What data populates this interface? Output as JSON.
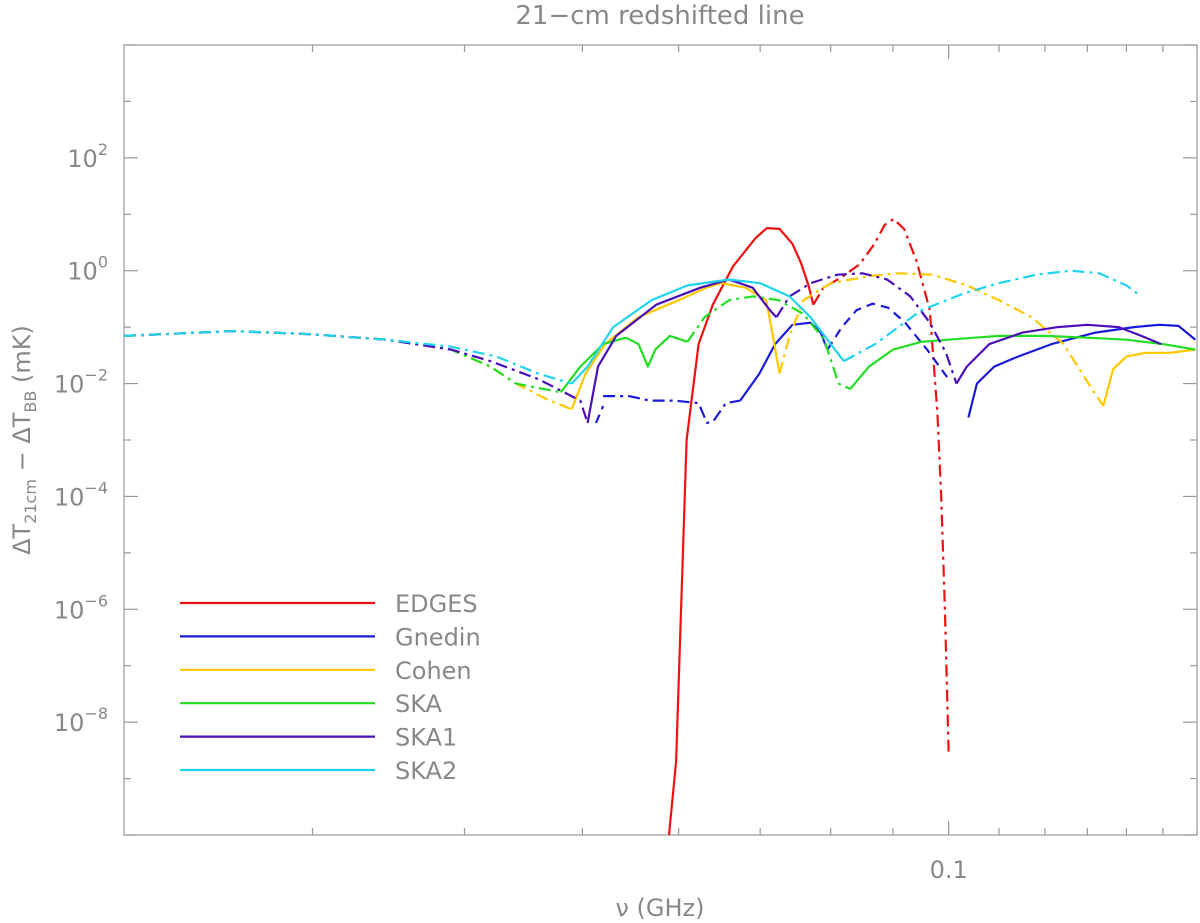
{
  "chart_data": {
    "type": "line",
    "title": "21−cm redshifted line",
    "xlabel": "ν (GHz)",
    "ylabel": "ΔT21cm − ΔTBB (mK)",
    "x_scale": "log",
    "y_scale": "log",
    "xlim": [
      0.021,
      0.16
    ],
    "ylim": [
      1e-10,
      10000.0
    ],
    "grid": false,
    "legend_position": "bottom-left",
    "x_tick_labels": [
      {
        "value": 0.1,
        "label": "0.1"
      }
    ],
    "y_tick_labels": [
      {
        "value": 100,
        "base": "10",
        "exp": "2"
      },
      {
        "value": 1,
        "base": "10",
        "exp": "0"
      },
      {
        "value": 0.01,
        "base": "10",
        "exp": "−2"
      },
      {
        "value": 0.0001,
        "base": "10",
        "exp": "−4"
      },
      {
        "value": 1e-06,
        "base": "10",
        "exp": "−6"
      },
      {
        "value": 1e-08,
        "base": "10",
        "exp": "−8"
      }
    ],
    "series": [
      {
        "name": "EDGES",
        "color": "#ee1111",
        "segments": [
          {
            "style": "solid",
            "points": [
              [
                0.0589,
                1e-10
              ],
              [
                0.0597,
                2e-09
              ],
              [
                0.0609,
                0.001
              ],
              [
                0.0623,
                0.05
              ],
              [
                0.064,
                0.25
              ],
              [
                0.0665,
                1.2
              ],
              [
                0.0694,
                3.8
              ],
              [
                0.0709,
                5.7
              ],
              [
                0.0726,
                5.5
              ],
              [
                0.0744,
                3.0
              ],
              [
                0.0756,
                1.4
              ],
              [
                0.0767,
                0.55
              ],
              [
                0.0774,
                0.25
              ]
            ]
          },
          {
            "style": "dashdot",
            "points": [
              [
                0.0774,
                0.25
              ],
              [
                0.0789,
                0.5
              ],
              [
                0.0815,
                0.75
              ],
              [
                0.0845,
                1.3
              ],
              [
                0.0869,
                3.0
              ],
              [
                0.0886,
                6.5
              ],
              [
                0.0901,
                8.2
              ],
              [
                0.0919,
                5.5
              ],
              [
                0.0941,
                1.5
              ],
              [
                0.0965,
                0.2
              ],
              [
                0.0979,
                0.003
              ],
              [
                0.0986,
                0.0001
              ],
              [
                0.0993,
                1e-06
              ],
              [
                0.1,
                3e-09
              ]
            ]
          }
        ]
      },
      {
        "name": "Gnedin",
        "color": "#1a1adb",
        "segments": [
          {
            "style": "dashed",
            "points": [
              [
                0.0513,
                0.002
              ],
              [
                0.052,
                0.004
              ]
            ]
          },
          {
            "style": "dashdot",
            "points": [
              [
                0.052,
                0.006
              ],
              [
                0.0546,
                0.006
              ],
              [
                0.0568,
                0.005
              ],
              [
                0.0595,
                0.005
              ],
              [
                0.0623,
                0.0045
              ],
              [
                0.0633,
                0.002
              ],
              [
                0.0641,
                0.0022
              ],
              [
                0.0656,
                0.0045
              ],
              [
                0.0674,
                0.005
              ]
            ]
          },
          {
            "style": "solid",
            "points": [
              [
                0.0674,
                0.005
              ],
              [
                0.0699,
                0.015
              ],
              [
                0.072,
                0.05
              ],
              [
                0.0744,
                0.11
              ],
              [
                0.077,
                0.12
              ],
              [
                0.0785,
                0.08
              ],
              [
                0.0795,
                0.04
              ]
            ]
          },
          {
            "style": "dashed",
            "points": [
              [
                0.0795,
                0.04
              ],
              [
                0.0817,
                0.1
              ],
              [
                0.084,
                0.2
              ],
              [
                0.0866,
                0.26
              ],
              [
                0.0892,
                0.22
              ],
              [
                0.0921,
                0.12
              ],
              [
                0.096,
                0.04
              ],
              [
                0.0997,
                0.013
              ]
            ]
          },
          {
            "style": "solid",
            "points": [
              [
                0.1038,
                0.0025
              ],
              [
                0.1055,
                0.01
              ],
              [
                0.109,
                0.02
              ],
              [
                0.114,
                0.03
              ],
              [
                0.1215,
                0.05
              ],
              [
                0.132,
                0.08
              ],
              [
                0.142,
                0.1
              ],
              [
                0.149,
                0.11
              ],
              [
                0.1545,
                0.105
              ],
              [
                0.1595,
                0.06
              ]
            ]
          }
        ]
      },
      {
        "name": "Cohen",
        "color": "#ffc800",
        "segments": [
          {
            "style": "dashdot",
            "points": [
              [
                0.021,
                0.07
              ],
              [
                0.0258,
                0.085
              ],
              [
                0.0299,
                0.075
              ],
              [
                0.0345,
                0.06
              ],
              [
                0.039,
                0.04
              ],
              [
                0.042,
                0.02
              ],
              [
                0.0441,
                0.01
              ],
              [
                0.047,
                0.005
              ],
              [
                0.049,
                0.0035
              ]
            ]
          },
          {
            "style": "solid",
            "points": [
              [
                0.049,
                0.0035
              ],
              [
                0.0503,
                0.015
              ],
              [
                0.0522,
                0.05
              ],
              [
                0.0556,
                0.15
              ],
              [
                0.06,
                0.3
              ],
              [
                0.0632,
                0.5
              ],
              [
                0.065,
                0.6
              ],
              [
                0.0681,
                0.5
              ],
              [
                0.0708,
                0.3
              ],
              [
                0.0718,
                0.06
              ],
              [
                0.0726,
                0.015
              ]
            ]
          },
          {
            "style": "dashdot",
            "points": [
              [
                0.0726,
                0.015
              ],
              [
                0.074,
                0.07
              ],
              [
                0.076,
                0.3
              ],
              [
                0.08,
                0.6
              ],
              [
                0.086,
                0.8
              ],
              [
                0.091,
                0.9
              ],
              [
                0.097,
                0.85
              ],
              [
                0.1035,
                0.55
              ],
              [
                0.11,
                0.3
              ],
              [
                0.117,
                0.15
              ],
              [
                0.1243,
                0.05
              ],
              [
                0.1303,
                0.01
              ],
              [
                0.134,
                0.004
              ]
            ]
          },
          {
            "style": "solid",
            "points": [
              [
                0.134,
                0.004
              ],
              [
                0.1365,
                0.018
              ],
              [
                0.14,
                0.03
              ],
              [
                0.145,
                0.035
              ],
              [
                0.152,
                0.035
              ],
              [
                0.1595,
                0.04
              ]
            ]
          }
        ]
      },
      {
        "name": "SKA",
        "color": "#22dd22",
        "segments": [
          {
            "style": "dashdot",
            "points": [
              [
                0.021,
                0.07
              ],
              [
                0.0258,
                0.085
              ],
              [
                0.0299,
                0.075
              ],
              [
                0.0345,
                0.06
              ],
              [
                0.039,
                0.04
              ],
              [
                0.042,
                0.02
              ],
              [
                0.0441,
                0.01
              ],
              [
                0.048,
                0.007
              ]
            ]
          },
          {
            "style": "solid",
            "points": [
              [
                0.048,
                0.007
              ],
              [
                0.0498,
                0.02
              ],
              [
                0.052,
                0.05
              ],
              [
                0.0543,
                0.065
              ],
              [
                0.0556,
                0.05
              ],
              [
                0.0566,
                0.02
              ],
              [
                0.0574,
                0.04
              ],
              [
                0.059,
                0.07
              ],
              [
                0.061,
                0.055
              ]
            ]
          },
          {
            "style": "dashdot",
            "points": [
              [
                0.061,
                0.055
              ],
              [
                0.063,
                0.15
              ],
              [
                0.066,
                0.3
              ],
              [
                0.069,
                0.35
              ],
              [
                0.0725,
                0.3
              ],
              [
                0.076,
                0.17
              ],
              [
                0.079,
                0.06
              ],
              [
                0.0812,
                0.01
              ],
              [
                0.083,
                0.008
              ]
            ]
          },
          {
            "style": "solid",
            "points": [
              [
                0.083,
                0.008
              ],
              [
                0.086,
                0.02
              ],
              [
                0.09,
                0.04
              ],
              [
                0.095,
                0.055
              ],
              [
                0.1,
                0.06
              ],
              [
                0.105,
                0.065
              ],
              [
                0.11,
                0.07
              ],
              [
                0.12,
                0.07
              ],
              [
                0.13,
                0.065
              ],
              [
                0.14,
                0.06
              ],
              [
                0.15,
                0.05
              ],
              [
                0.1595,
                0.04
              ]
            ]
          }
        ]
      },
      {
        "name": "SKA1",
        "color": "#4a0fb8",
        "segments": [
          {
            "style": "dashdot",
            "points": [
              [
                0.021,
                0.07
              ],
              [
                0.0258,
                0.085
              ],
              [
                0.0299,
                0.075
              ],
              [
                0.0345,
                0.06
              ],
              [
                0.039,
                0.04
              ],
              [
                0.042,
                0.025
              ],
              [
                0.046,
                0.012
              ],
              [
                0.0498,
                0.005
              ],
              [
                0.0505,
                0.002
              ]
            ]
          },
          {
            "style": "solid",
            "points": [
              [
                0.0505,
                0.002
              ],
              [
                0.0515,
                0.02
              ],
              [
                0.0533,
                0.07
              ],
              [
                0.0575,
                0.25
              ],
              [
                0.0625,
                0.5
              ],
              [
                0.066,
                0.7
              ],
              [
                0.069,
                0.5
              ],
              [
                0.0713,
                0.2
              ],
              [
                0.0722,
                0.15
              ]
            ]
          },
          {
            "style": "dashdot",
            "points": [
              [
                0.0722,
                0.15
              ],
              [
                0.074,
                0.35
              ],
              [
                0.077,
                0.6
              ],
              [
                0.081,
                0.85
              ],
              [
                0.085,
                0.9
              ],
              [
                0.089,
                0.7
              ],
              [
                0.093,
                0.35
              ],
              [
                0.0965,
                0.12
              ],
              [
                0.0995,
                0.035
              ],
              [
                0.1015,
                0.01
              ]
            ]
          },
          {
            "style": "solid",
            "points": [
              [
                0.1015,
                0.01
              ],
              [
                0.1035,
                0.02
              ],
              [
                0.108,
                0.05
              ],
              [
                0.115,
                0.08
              ],
              [
                0.123,
                0.1
              ],
              [
                0.13,
                0.11
              ],
              [
                0.138,
                0.1
              ],
              [
                0.144,
                0.07
              ],
              [
                0.1495,
                0.05
              ]
            ]
          }
        ]
      },
      {
        "name": "SKA2",
        "color": "#22d3ee",
        "segments": [
          {
            "style": "dashdot",
            "points": [
              [
                0.021,
                0.07
              ],
              [
                0.0258,
                0.085
              ],
              [
                0.0299,
                0.075
              ],
              [
                0.0345,
                0.06
              ],
              [
                0.039,
                0.045
              ],
              [
                0.0425,
                0.03
              ],
              [
                0.046,
                0.015
              ],
              [
                0.049,
                0.01
              ]
            ]
          },
          {
            "style": "solid",
            "points": [
              [
                0.049,
                0.01
              ],
              [
                0.0505,
                0.02
              ],
              [
                0.053,
                0.1
              ],
              [
                0.057,
                0.3
              ],
              [
                0.061,
                0.55
              ],
              [
                0.066,
                0.7
              ],
              [
                0.07,
                0.6
              ],
              [
                0.074,
                0.35
              ],
              [
                0.077,
                0.15
              ],
              [
                0.08,
                0.05
              ],
              [
                0.082,
                0.025
              ]
            ]
          },
          {
            "style": "dashdot",
            "points": [
              [
                0.082,
                0.025
              ],
              [
                0.087,
                0.05
              ],
              [
                0.095,
                0.2
              ],
              [
                0.103,
                0.4
              ],
              [
                0.11,
                0.6
              ],
              [
                0.118,
                0.85
              ],
              [
                0.126,
                1.0
              ],
              [
                0.133,
                0.9
              ],
              [
                0.14,
                0.55
              ],
              [
                0.144,
                0.35
              ]
            ]
          }
        ]
      }
    ]
  }
}
